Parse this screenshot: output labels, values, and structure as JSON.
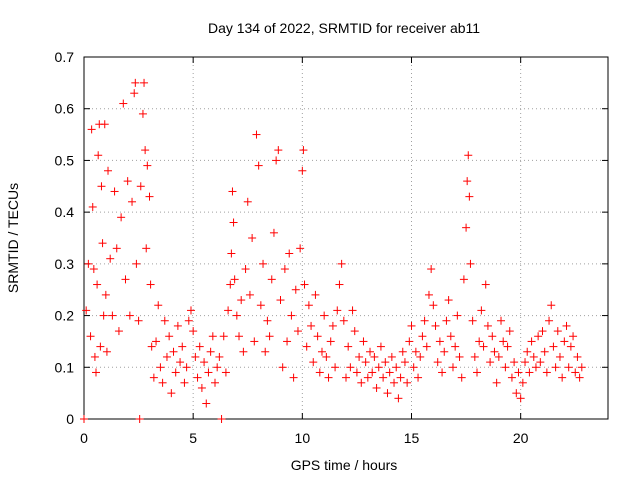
{
  "chart_data": {
    "type": "scatter",
    "title": "Day 134 of 2022, SRMTID for receiver ab11",
    "xlabel": "GPS time / hours",
    "ylabel": "SRMTID / TECUs",
    "xlim": [
      0,
      24
    ],
    "ylim": [
      0,
      0.7
    ],
    "x_ticks": [
      "0",
      "5",
      "10",
      "15",
      "20"
    ],
    "y_ticks": [
      "0",
      "0.1",
      "0.2",
      "0.3",
      "0.4",
      "0.5",
      "0.6",
      "0.7"
    ],
    "grid": true,
    "marker": "+",
    "marker_color": "#ff0000",
    "series": [
      {
        "name": "SRMTID",
        "points": [
          [
            0.0,
            0.0
          ],
          [
            0.1,
            0.21
          ],
          [
            0.2,
            0.3
          ],
          [
            0.3,
            0.16
          ],
          [
            0.35,
            0.56
          ],
          [
            0.4,
            0.41
          ],
          [
            0.45,
            0.29
          ],
          [
            0.5,
            0.12
          ],
          [
            0.55,
            0.09
          ],
          [
            0.6,
            0.26
          ],
          [
            0.65,
            0.51
          ],
          [
            0.7,
            0.57
          ],
          [
            0.75,
            0.14
          ],
          [
            0.8,
            0.45
          ],
          [
            0.85,
            0.34
          ],
          [
            0.9,
            0.2
          ],
          [
            0.95,
            0.57
          ],
          [
            1.0,
            0.24
          ],
          [
            1.05,
            0.13
          ],
          [
            1.1,
            0.48
          ],
          [
            1.2,
            0.31
          ],
          [
            1.3,
            0.2
          ],
          [
            1.4,
            0.44
          ],
          [
            1.5,
            0.33
          ],
          [
            1.6,
            0.17
          ],
          [
            1.7,
            0.39
          ],
          [
            1.8,
            0.61
          ],
          [
            1.9,
            0.27
          ],
          [
            2.0,
            0.46
          ],
          [
            2.1,
            0.2
          ],
          [
            2.2,
            0.42
          ],
          [
            2.3,
            0.63
          ],
          [
            2.35,
            0.65
          ],
          [
            2.4,
            0.3
          ],
          [
            2.5,
            0.19
          ],
          [
            2.55,
            0.0
          ],
          [
            2.6,
            0.45
          ],
          [
            2.7,
            0.59
          ],
          [
            2.75,
            0.65
          ],
          [
            2.8,
            0.52
          ],
          [
            2.85,
            0.33
          ],
          [
            2.9,
            0.49
          ],
          [
            3.0,
            0.43
          ],
          [
            3.05,
            0.26
          ],
          [
            3.1,
            0.14
          ],
          [
            3.2,
            0.08
          ],
          [
            3.3,
            0.15
          ],
          [
            3.4,
            0.22
          ],
          [
            3.5,
            0.1
          ],
          [
            3.6,
            0.07
          ],
          [
            3.7,
            0.19
          ],
          [
            3.8,
            0.12
          ],
          [
            3.9,
            0.16
          ],
          [
            4.0,
            0.05
          ],
          [
            4.1,
            0.13
          ],
          [
            4.2,
            0.09
          ],
          [
            4.3,
            0.18
          ],
          [
            4.4,
            0.11
          ],
          [
            4.5,
            0.14
          ],
          [
            4.6,
            0.07
          ],
          [
            4.7,
            0.1
          ],
          [
            4.8,
            0.19
          ],
          [
            4.9,
            0.21
          ],
          [
            5.0,
            0.17
          ],
          [
            5.1,
            0.12
          ],
          [
            5.2,
            0.08
          ],
          [
            5.3,
            0.14
          ],
          [
            5.4,
            0.06
          ],
          [
            5.5,
            0.11
          ],
          [
            5.6,
            0.03
          ],
          [
            5.7,
            0.09
          ],
          [
            5.8,
            0.13
          ],
          [
            5.9,
            0.16
          ],
          [
            6.0,
            0.07
          ],
          [
            6.1,
            0.1
          ],
          [
            6.2,
            0.12
          ],
          [
            6.3,
            0.0
          ],
          [
            6.4,
            0.16
          ],
          [
            6.5,
            0.09
          ],
          [
            6.6,
            0.21
          ],
          [
            6.7,
            0.26
          ],
          [
            6.75,
            0.32
          ],
          [
            6.8,
            0.44
          ],
          [
            6.85,
            0.38
          ],
          [
            6.9,
            0.27
          ],
          [
            7.0,
            0.2
          ],
          [
            7.1,
            0.16
          ],
          [
            7.2,
            0.23
          ],
          [
            7.3,
            0.13
          ],
          [
            7.4,
            0.29
          ],
          [
            7.5,
            0.42
          ],
          [
            7.6,
            0.24
          ],
          [
            7.7,
            0.35
          ],
          [
            7.8,
            0.15
          ],
          [
            7.9,
            0.55
          ],
          [
            8.0,
            0.49
          ],
          [
            8.1,
            0.22
          ],
          [
            8.2,
            0.3
          ],
          [
            8.3,
            0.13
          ],
          [
            8.4,
            0.19
          ],
          [
            8.5,
            0.16
          ],
          [
            8.6,
            0.27
          ],
          [
            8.7,
            0.36
          ],
          [
            8.8,
            0.5
          ],
          [
            8.9,
            0.52
          ],
          [
            9.0,
            0.23
          ],
          [
            9.1,
            0.1
          ],
          [
            9.2,
            0.29
          ],
          [
            9.3,
            0.15
          ],
          [
            9.4,
            0.32
          ],
          [
            9.5,
            0.2
          ],
          [
            9.6,
            0.08
          ],
          [
            9.7,
            0.25
          ],
          [
            9.8,
            0.17
          ],
          [
            9.9,
            0.33
          ],
          [
            10.0,
            0.48
          ],
          [
            10.05,
            0.52
          ],
          [
            10.1,
            0.26
          ],
          [
            10.2,
            0.14
          ],
          [
            10.3,
            0.22
          ],
          [
            10.4,
            0.18
          ],
          [
            10.5,
            0.11
          ],
          [
            10.6,
            0.24
          ],
          [
            10.7,
            0.16
          ],
          [
            10.8,
            0.09
          ],
          [
            10.9,
            0.13
          ],
          [
            11.0,
            0.2
          ],
          [
            11.1,
            0.12
          ],
          [
            11.2,
            0.08
          ],
          [
            11.3,
            0.15
          ],
          [
            11.4,
            0.18
          ],
          [
            11.5,
            0.1
          ],
          [
            11.6,
            0.21
          ],
          [
            11.7,
            0.26
          ],
          [
            11.8,
            0.3
          ],
          [
            11.9,
            0.19
          ],
          [
            12.0,
            0.08
          ],
          [
            12.1,
            0.14
          ],
          [
            12.2,
            0.1
          ],
          [
            12.3,
            0.21
          ],
          [
            12.4,
            0.17
          ],
          [
            12.5,
            0.09
          ],
          [
            12.6,
            0.12
          ],
          [
            12.7,
            0.07
          ],
          [
            12.8,
            0.15
          ],
          [
            12.9,
            0.11
          ],
          [
            13.0,
            0.08
          ],
          [
            13.1,
            0.13
          ],
          [
            13.2,
            0.09
          ],
          [
            13.3,
            0.12
          ],
          [
            13.4,
            0.06
          ],
          [
            13.5,
            0.1
          ],
          [
            13.6,
            0.14
          ],
          [
            13.7,
            0.08
          ],
          [
            13.8,
            0.11
          ],
          [
            13.9,
            0.05
          ],
          [
            14.0,
            0.09
          ],
          [
            14.1,
            0.12
          ],
          [
            14.2,
            0.07
          ],
          [
            14.3,
            0.1
          ],
          [
            14.4,
            0.04
          ],
          [
            14.5,
            0.08
          ],
          [
            14.6,
            0.13
          ],
          [
            14.7,
            0.11
          ],
          [
            14.8,
            0.07
          ],
          [
            14.9,
            0.15
          ],
          [
            15.0,
            0.18
          ],
          [
            15.1,
            0.1
          ],
          [
            15.2,
            0.13
          ],
          [
            15.3,
            0.08
          ],
          [
            15.4,
            0.12
          ],
          [
            15.5,
            0.16
          ],
          [
            15.6,
            0.19
          ],
          [
            15.7,
            0.14
          ],
          [
            15.8,
            0.24
          ],
          [
            15.9,
            0.29
          ],
          [
            16.0,
            0.22
          ],
          [
            16.1,
            0.18
          ],
          [
            16.2,
            0.11
          ],
          [
            16.3,
            0.15
          ],
          [
            16.4,
            0.09
          ],
          [
            16.5,
            0.13
          ],
          [
            16.6,
            0.19
          ],
          [
            16.7,
            0.23
          ],
          [
            16.8,
            0.16
          ],
          [
            16.9,
            0.1
          ],
          [
            17.0,
            0.14
          ],
          [
            17.1,
            0.2
          ],
          [
            17.2,
            0.12
          ],
          [
            17.3,
            0.08
          ],
          [
            17.4,
            0.27
          ],
          [
            17.5,
            0.37
          ],
          [
            17.55,
            0.46
          ],
          [
            17.6,
            0.51
          ],
          [
            17.65,
            0.43
          ],
          [
            17.7,
            0.3
          ],
          [
            17.8,
            0.19
          ],
          [
            17.9,
            0.12
          ],
          [
            18.0,
            0.09
          ],
          [
            18.1,
            0.15
          ],
          [
            18.2,
            0.21
          ],
          [
            18.3,
            0.14
          ],
          [
            18.4,
            0.26
          ],
          [
            18.5,
            0.18
          ],
          [
            18.6,
            0.11
          ],
          [
            18.7,
            0.16
          ],
          [
            18.8,
            0.13
          ],
          [
            18.9,
            0.07
          ],
          [
            19.0,
            0.12
          ],
          [
            19.1,
            0.19
          ],
          [
            19.2,
            0.15
          ],
          [
            19.3,
            0.1
          ],
          [
            19.4,
            0.14
          ],
          [
            19.5,
            0.17
          ],
          [
            19.6,
            0.08
          ],
          [
            19.7,
            0.11
          ],
          [
            19.8,
            0.05
          ],
          [
            19.9,
            0.09
          ],
          [
            20.0,
            0.04
          ],
          [
            20.1,
            0.07
          ],
          [
            20.2,
            0.11
          ],
          [
            20.3,
            0.13
          ],
          [
            20.4,
            0.09
          ],
          [
            20.5,
            0.15
          ],
          [
            20.6,
            0.12
          ],
          [
            20.7,
            0.1
          ],
          [
            20.8,
            0.16
          ],
          [
            20.9,
            0.11
          ],
          [
            21.0,
            0.17
          ],
          [
            21.1,
            0.13
          ],
          [
            21.2,
            0.09
          ],
          [
            21.3,
            0.19
          ],
          [
            21.4,
            0.22
          ],
          [
            21.5,
            0.14
          ],
          [
            21.6,
            0.1
          ],
          [
            21.7,
            0.17
          ],
          [
            21.8,
            0.12
          ],
          [
            21.9,
            0.08
          ],
          [
            22.0,
            0.15
          ],
          [
            22.1,
            0.18
          ],
          [
            22.2,
            0.1
          ],
          [
            22.3,
            0.14
          ],
          [
            22.4,
            0.16
          ],
          [
            22.5,
            0.09
          ],
          [
            22.6,
            0.12
          ],
          [
            22.7,
            0.08
          ],
          [
            22.8,
            0.1
          ]
        ]
      }
    ]
  }
}
